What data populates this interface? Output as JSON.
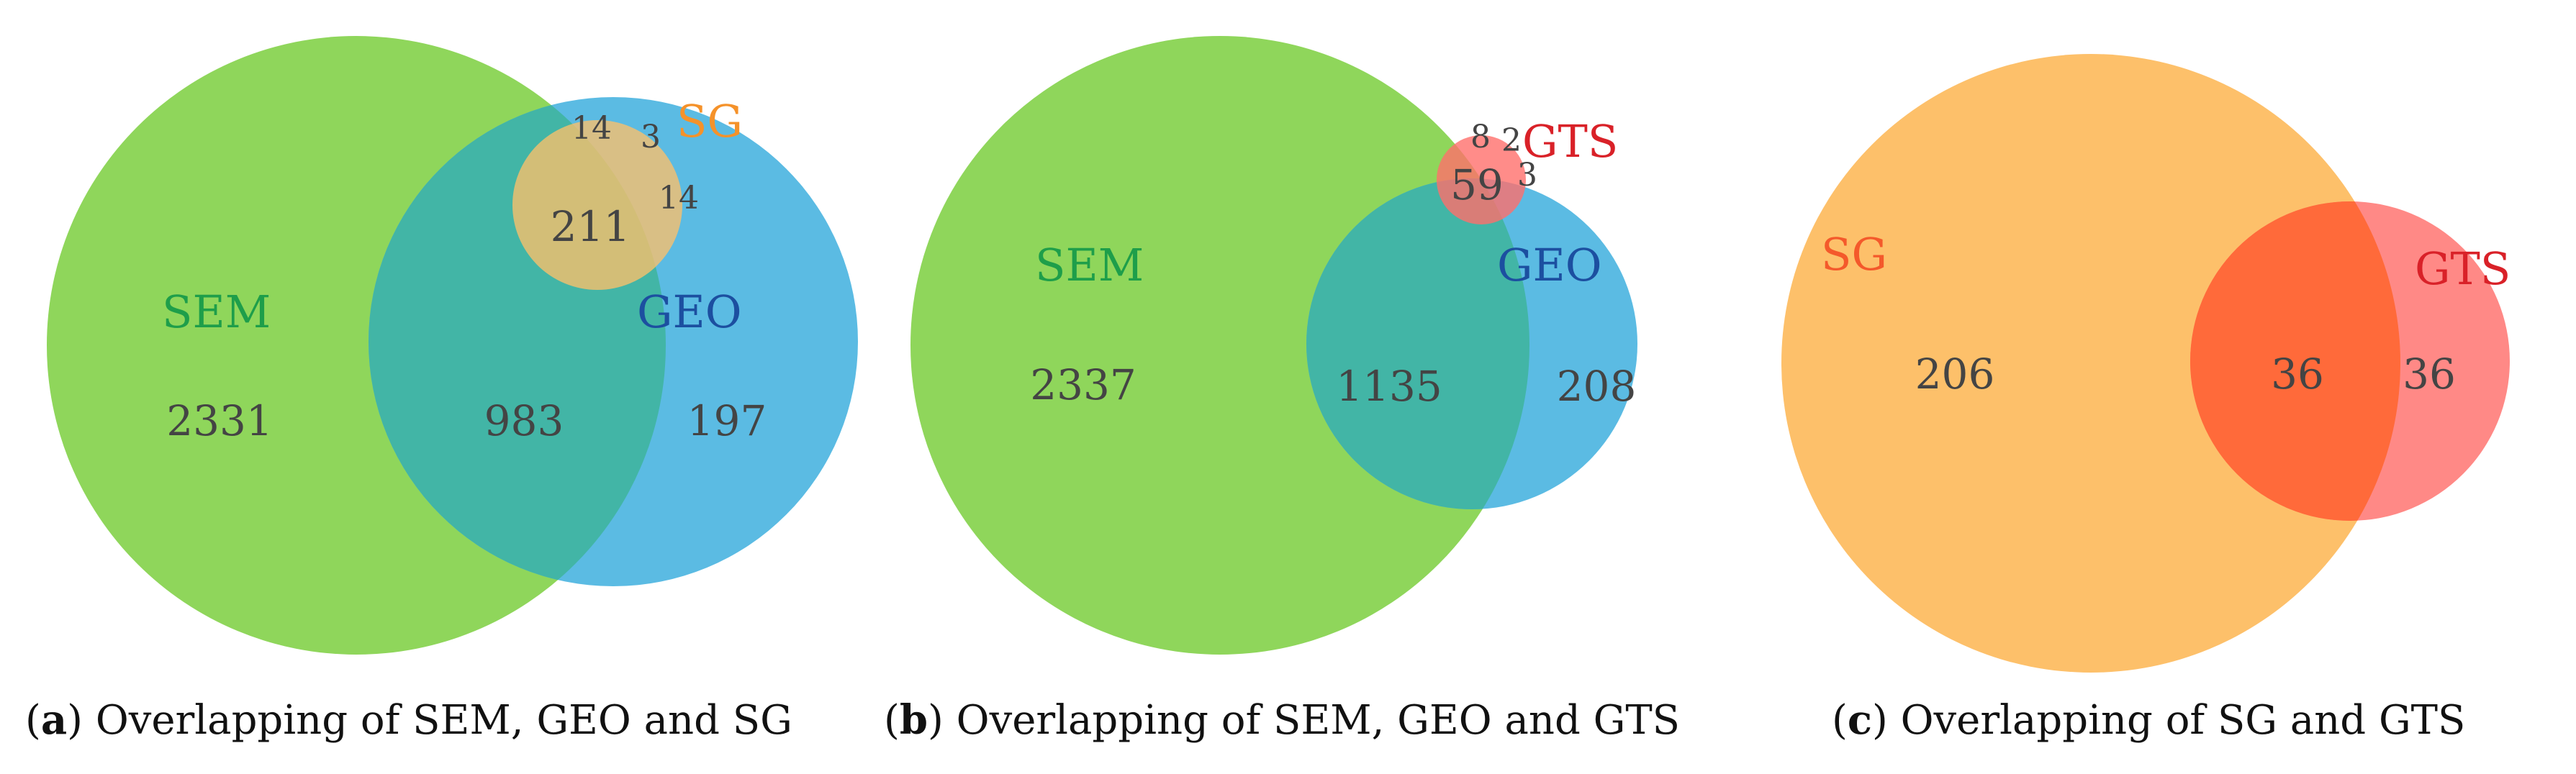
{
  "colors": {
    "SEM": "#8fd65b",
    "GEO": "#5bbbe3",
    "SG": "#fdc06a",
    "GTS": "#ff6f6b",
    "SEM_GEO_overlap": "#42b5a6",
    "SEM_label": "#1e9e4a",
    "GEO_label": "#1c4fa0",
    "SG_label_a": "#f5922a",
    "SG_label_c": "#f4592b",
    "GTS_label": "#d92128"
  },
  "panels": [
    {
      "caption": {
        "letter": "a",
        "text": "Overlapping of SEM, GEO and SG"
      },
      "sets": {
        "SEM": "SEM",
        "GEO": "GEO",
        "SG": "SG"
      },
      "regions": {
        "sem_only": "2331",
        "sem_geo": "983",
        "geo_only": "197",
        "sem_geo_sg": "211",
        "sem_sg": "14",
        "sg_only": "3",
        "geo_sg": "14"
      }
    },
    {
      "caption": {
        "letter": "b",
        "text": "Overlapping of SEM, GEO and GTS"
      },
      "sets": {
        "SEM": "SEM",
        "GEO": "GEO",
        "GTS": "GTS"
      },
      "regions": {
        "sem_only": "2337",
        "sem_geo": "1135",
        "geo_only": "208",
        "sem_geo_gts": "59",
        "sem_gts": "8",
        "gts_only": "2",
        "geo_gts": "3"
      }
    },
    {
      "caption": {
        "letter": "c",
        "text": "Overlapping of SG and GTS"
      },
      "sets": {
        "SG": "SG",
        "GTS": "GTS"
      },
      "regions": {
        "sg_only": "206",
        "sg_gts": "36",
        "gts_only": "36"
      }
    }
  ]
}
